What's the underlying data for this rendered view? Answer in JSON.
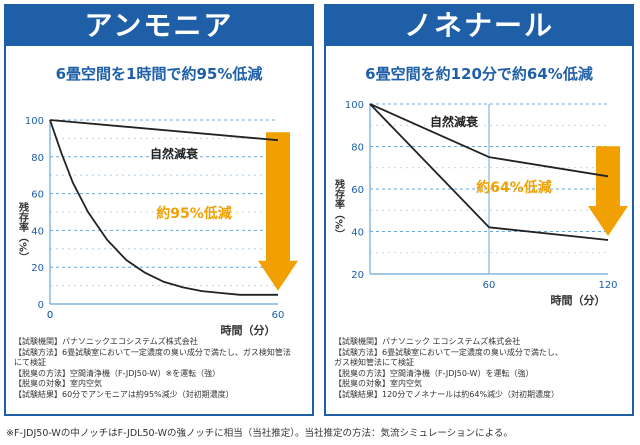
{
  "chart_data": [
    {
      "type": "line",
      "title": "アンモニア",
      "subtitle": "6畳空間を1時間で約95%低減",
      "xlabel": "時間（分）",
      "ylabel": "残存率（%）",
      "xlim": [
        0,
        60
      ],
      "ylim": [
        0,
        100
      ],
      "x_ticks": [
        0,
        60
      ],
      "y_ticks": [
        0,
        20,
        40,
        60,
        80,
        100
      ],
      "grid": "horizontal dashed",
      "series": [
        {
          "name": "自然減衰",
          "x": [
            0,
            60
          ],
          "y": [
            100,
            89
          ]
        },
        {
          "name": "",
          "x": [
            0,
            3,
            6,
            10,
            15,
            20,
            25,
            30,
            35,
            40,
            45,
            50,
            55,
            60
          ],
          "y": [
            100,
            82,
            66,
            50,
            35,
            24,
            17,
            12,
            9,
            7,
            6,
            5,
            5,
            5
          ]
        }
      ],
      "annotation": "約95%低減",
      "natural_label": "自然減衰",
      "notes": [
        "【試験機関】パナソニックエコシステムズ株式会社",
        "【試験方法】6畳試験室において一定濃度の臭い成分で満たし、ガス検知管法",
        "にて検証",
        "【脱臭の方法】空間清浄機（F-JDJ50-W）※を運転（強）",
        "【脱臭の対象】室内空気",
        "【試験結果】60分でアンモニアは約95%減少（対初期濃度）"
      ]
    },
    {
      "type": "line",
      "title": "ノネナール",
      "subtitle": "6畳空間を約120分で約64%低減",
      "xlabel": "時間（分）",
      "ylabel": "残存率（%）",
      "xlim": [
        0,
        120
      ],
      "ylim": [
        20,
        100
      ],
      "x_ticks": [
        60,
        120
      ],
      "y_ticks": [
        20,
        40,
        60,
        80,
        100
      ],
      "grid": "horizontal dashed",
      "series": [
        {
          "name": "自然減衰",
          "x": [
            0,
            60,
            120
          ],
          "y": [
            100,
            75,
            66
          ]
        },
        {
          "name": "",
          "x": [
            0,
            60,
            120
          ],
          "y": [
            100,
            42,
            36
          ]
        }
      ],
      "annotation": "約64%低減",
      "natural_label": "自然減衰",
      "notes": [
        "【試験機関】パナソニック エコシステムズ株式会社",
        "【試験方法】6畳試験室において一定濃度の臭い成分で満たし、",
        "ガス検知管法にて検証",
        "【脱臭の方法】空間清浄機（F-JDJ50-W）を運転（強）",
        "【脱臭の対象】室内空気",
        "【試験結果】120分でノネナールは約64%減少（対初期濃度）"
      ]
    }
  ],
  "footnote": "※F-JDJ50-Wの中ノッチはF-JDL50-Wの強ノッチに相当（当社推定）。当社推定の方法：気流シミュレーションによる。",
  "colors": {
    "frame": "#1e5fa8",
    "axis_text": "#1e5fa8",
    "grid": "#6aa8d8",
    "curve": "#222222",
    "arrow": "#f0a000",
    "annotation": "#f0a000"
  }
}
